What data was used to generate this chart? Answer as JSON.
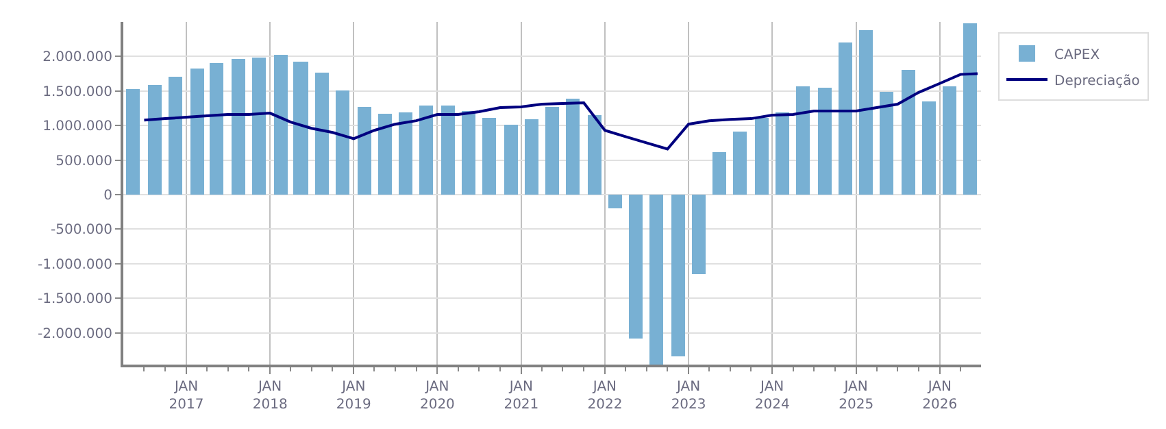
{
  "chart_data": {
    "type": "bar",
    "ylim": [
      -2460000,
      2500000
    ],
    "yticks": [
      {
        "value": -2000000,
        "label": "-2.000.000"
      },
      {
        "value": -1500000,
        "label": "-1.500.000"
      },
      {
        "value": -1000000,
        "label": "-1.000.000"
      },
      {
        "value": -500000,
        "label": "-500.000"
      },
      {
        "value": 0,
        "label": "0"
      },
      {
        "value": 500000,
        "label": "500.000"
      },
      {
        "value": 1000000,
        "label": "1.000.000"
      },
      {
        "value": 1500000,
        "label": "1.500.000"
      },
      {
        "value": 2000000,
        "label": "2.000.000"
      }
    ],
    "xlim": [
      "2016-04-01",
      "2026-06-30"
    ],
    "xticks": [
      {
        "value": "2016-07-01",
        "label": null
      },
      {
        "value": "2016-10-01",
        "label": null
      },
      {
        "value": "2017-01-01",
        "label": "JAN\n2017"
      },
      {
        "value": "2017-04-01",
        "label": null
      },
      {
        "value": "2017-07-01",
        "label": null
      },
      {
        "value": "2017-10-01",
        "label": null
      },
      {
        "value": "2018-01-01",
        "label": "JAN\n2018"
      },
      {
        "value": "2018-04-01",
        "label": null
      },
      {
        "value": "2018-07-01",
        "label": null
      },
      {
        "value": "2018-10-01",
        "label": null
      },
      {
        "value": "2019-01-01",
        "label": "JAN\n2019"
      },
      {
        "value": "2019-04-01",
        "label": null
      },
      {
        "value": "2019-07-01",
        "label": null
      },
      {
        "value": "2019-10-01",
        "label": null
      },
      {
        "value": "2020-01-01",
        "label": "JAN\n2020"
      },
      {
        "value": "2020-04-01",
        "label": null
      },
      {
        "value": "2020-07-01",
        "label": null
      },
      {
        "value": "2020-10-01",
        "label": null
      },
      {
        "value": "2021-01-01",
        "label": "JAN\n2021"
      },
      {
        "value": "2021-04-01",
        "label": null
      },
      {
        "value": "2021-07-01",
        "label": null
      },
      {
        "value": "2021-10-01",
        "label": null
      },
      {
        "value": "2022-01-01",
        "label": "JAN\n2022"
      },
      {
        "value": "2022-04-01",
        "label": null
      },
      {
        "value": "2022-07-01",
        "label": null
      },
      {
        "value": "2022-10-01",
        "label": null
      },
      {
        "value": "2023-01-01",
        "label": "JAN\n2023"
      },
      {
        "value": "2023-04-01",
        "label": null
      },
      {
        "value": "2023-07-01",
        "label": null
      },
      {
        "value": "2023-10-01",
        "label": null
      },
      {
        "value": "2024-01-01",
        "label": "JAN\n2024"
      },
      {
        "value": "2024-04-01",
        "label": null
      },
      {
        "value": "2024-07-01",
        "label": null
      },
      {
        "value": "2024-10-01",
        "label": null
      },
      {
        "value": "2025-01-01",
        "label": "JAN\n2025"
      },
      {
        "value": "2025-04-01",
        "label": null
      },
      {
        "value": "2025-07-01",
        "label": null
      },
      {
        "value": "2025-10-01",
        "label": null
      },
      {
        "value": "2026-01-01",
        "label": "JAN\n2026"
      },
      {
        "value": "2026-04-01",
        "label": null
      }
    ],
    "grid": true,
    "legend": "top right",
    "x": [
      "2016-05-15",
      "2016-08-15",
      "2016-11-15",
      "2017-02-15",
      "2017-05-15",
      "2017-08-15",
      "2017-11-15",
      "2018-02-15",
      "2018-05-15",
      "2018-08-15",
      "2018-11-15",
      "2019-02-15",
      "2019-05-15",
      "2019-08-15",
      "2019-11-15",
      "2020-02-15",
      "2020-05-15",
      "2020-08-15",
      "2020-11-15",
      "2021-02-15",
      "2021-05-15",
      "2021-08-15",
      "2021-11-15",
      "2022-02-15",
      "2022-05-15",
      "2022-08-15",
      "2022-11-15",
      "2023-02-15",
      "2023-05-15",
      "2023-08-15",
      "2023-11-15",
      "2024-02-15",
      "2024-05-15",
      "2024-08-15",
      "2024-11-15",
      "2025-02-15",
      "2025-05-15",
      "2025-08-15",
      "2025-11-15",
      "2026-02-15",
      "2026-05-15"
    ],
    "series": [
      {
        "name": "CAPEX",
        "color": "#78b0d3",
        "values": [
          1530000,
          1590000,
          1700000,
          1820000,
          1910000,
          1970000,
          1990000,
          2020000,
          1930000,
          1760000,
          1510000,
          1270000,
          1170000,
          1190000,
          1290000,
          1290000,
          1210000,
          1120000,
          1020000,
          1100000,
          1270000,
          1380000,
          1150000,
          -190000,
          -2090000,
          -2460000,
          -2350000,
          -1150000,
          610000,
          910000,
          1120000,
          1190000,
          1570000,
          1550000,
          2200000,
          2390000,
          1480000,
          1800000,
          1340000,
          1570000,
          2480000
        ]
      },
      {
        "name": "Depreciação",
        "type": "line",
        "color": "#00007f",
        "marker": "none",
        "line_style": "solid",
        "x": [
          "2016-07-01",
          "2016-10-01",
          "2017-01-01",
          "2017-04-01",
          "2017-07-01",
          "2017-10-01",
          "2018-01-01",
          "2018-04-01",
          "2018-07-01",
          "2018-10-01",
          "2019-01-01",
          "2019-04-01",
          "2019-07-01",
          "2019-10-01",
          "2020-01-01",
          "2020-04-01",
          "2020-07-01",
          "2020-10-01",
          "2021-01-01",
          "2021-04-01",
          "2021-07-01",
          "2021-10-01",
          "2022-01-01",
          "2022-04-01",
          "2022-07-01",
          "2022-10-01",
          "2023-01-01",
          "2023-04-01",
          "2023-07-01",
          "2023-10-01",
          "2024-01-01",
          "2024-04-01",
          "2024-07-01",
          "2024-10-01",
          "2025-01-01",
          "2025-04-01",
          "2025-07-01",
          "2025-10-01",
          "2026-01-01",
          "2026-04-01",
          "2026-06-15"
        ],
        "values": [
          1080000,
          1100000,
          1120000,
          1140000,
          1160000,
          1160000,
          1180000,
          1050000,
          960000,
          900000,
          810000,
          930000,
          1020000,
          1070000,
          1160000,
          1160000,
          1200000,
          1260000,
          1270000,
          1310000,
          1320000,
          1330000,
          930000,
          840000,
          750000,
          660000,
          1020000,
          1070000,
          1090000,
          1100000,
          1150000,
          1160000,
          1210000,
          1210000,
          1210000,
          1260000,
          1310000,
          1480000,
          1610000,
          1740000,
          1750000
        ]
      }
    ]
  }
}
